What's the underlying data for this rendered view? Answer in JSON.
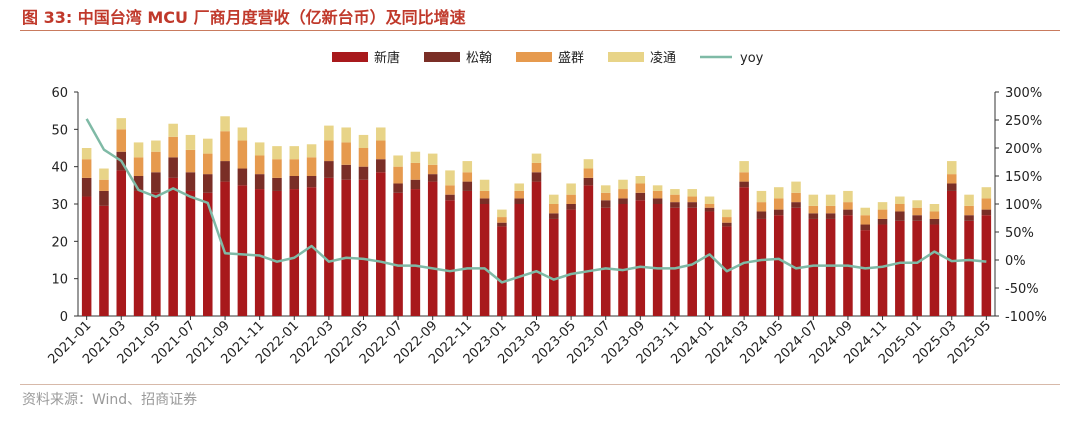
{
  "figure": {
    "title": "图 33:  中国台湾 MCU 厂商月度营收（亿新台币）及同比增速",
    "source": "资料来源：Wind、招商证券"
  },
  "chart_data": {
    "type": "bar",
    "stacked": true,
    "categories": [
      "2021-01",
      "2021-02",
      "2021-03",
      "2021-04",
      "2021-05",
      "2021-06",
      "2021-07",
      "2021-08",
      "2021-09",
      "2021-10",
      "2021-11",
      "2021-12",
      "2022-01",
      "2022-02",
      "2022-03",
      "2022-04",
      "2022-05",
      "2022-06",
      "2022-07",
      "2022-08",
      "2022-09",
      "2022-10",
      "2022-11",
      "2022-12",
      "2023-01",
      "2023-02",
      "2023-03",
      "2023-04",
      "2023-05",
      "2023-06",
      "2023-07",
      "2023-08",
      "2023-09",
      "2023-10",
      "2023-11",
      "2023-12",
      "2024-01",
      "2024-02",
      "2024-03",
      "2024-04",
      "2024-05",
      "2024-06",
      "2024-07",
      "2024-08",
      "2024-09",
      "2024-10",
      "2024-11",
      "2024-12",
      "2025-01",
      "2025-02",
      "2025-03",
      "2025-04",
      "2025-05"
    ],
    "x_tick_labels": [
      "2021-01",
      "2021-03",
      "2021-05",
      "2021-07",
      "2021-09",
      "2021-11",
      "2022-01",
      "2022-03",
      "2022-05",
      "2022-07",
      "2022-09",
      "2022-11",
      "2023-01",
      "2023-03",
      "2023-05",
      "2023-07",
      "2023-09",
      "2023-11",
      "2024-01",
      "2024-03",
      "2024-05",
      "2024-07",
      "2024-09",
      "2024-11",
      "2025-01",
      "2025-03",
      "2025-05"
    ],
    "series": [
      {
        "name": "新唐",
        "color": "#a8191c",
        "axis": "left",
        "values": [
          32,
          29.5,
          39,
          33.5,
          33,
          37,
          33.5,
          33,
          36,
          35,
          34,
          33.5,
          34,
          34.5,
          37,
          36.5,
          36.5,
          38.5,
          33,
          34,
          36,
          31,
          33.5,
          30,
          24,
          30,
          36,
          26,
          28.5,
          35,
          29,
          30,
          31,
          30,
          29,
          29,
          28,
          24,
          34.5,
          26,
          27,
          29,
          26,
          26,
          27,
          23,
          24.5,
          25.5,
          25.5,
          24.5,
          33.5,
          25.5,
          27
        ]
      },
      {
        "name": "松翰",
        "color": "#7a2e26",
        "axis": "left",
        "values": [
          5,
          4,
          5,
          4,
          5.5,
          5.5,
          5,
          5,
          5.5,
          4.5,
          4,
          3.5,
          3.5,
          3,
          4.5,
          4,
          3.5,
          3.5,
          2.5,
          2.5,
          2,
          1.5,
          2.5,
          1.5,
          1,
          1.5,
          2.5,
          1.5,
          1.5,
          2,
          2,
          1.5,
          2,
          1.5,
          1.5,
          1.5,
          1,
          1,
          1.5,
          2,
          1.5,
          1.5,
          1.5,
          1.5,
          1.5,
          1.5,
          1.5,
          2.5,
          1.5,
          1.5,
          2,
          1.5,
          1.5
        ]
      },
      {
        "name": "盛群",
        "color": "#e69a4e",
        "axis": "left",
        "values": [
          5,
          3,
          6,
          5,
          5.5,
          5.5,
          6,
          5.5,
          8,
          7.5,
          5,
          5,
          4.5,
          5,
          5.5,
          6,
          5,
          5,
          4.5,
          4.5,
          2.5,
          2.5,
          2.5,
          2,
          1.5,
          2,
          2.5,
          2.5,
          2.5,
          2.5,
          2,
          2.5,
          2.5,
          2,
          2,
          1.5,
          1,
          1.5,
          2.5,
          2.5,
          3,
          2.5,
          2,
          2,
          2,
          2.5,
          2.5,
          2,
          2,
          2,
          2.5,
          2.5,
          3
        ]
      },
      {
        "name": "凌通",
        "color": "#e8d488",
        "axis": "left",
        "values": [
          3,
          3,
          3,
          4,
          3,
          3.5,
          4,
          4,
          4,
          3.5,
          3.5,
          3.5,
          3.5,
          3.5,
          4,
          4,
          3.5,
          3.5,
          3,
          3,
          3,
          4,
          3,
          3,
          2,
          2,
          2.5,
          2.5,
          3,
          2.5,
          2,
          2.5,
          2,
          1.5,
          1.5,
          2,
          2,
          2,
          3,
          3,
          3,
          3,
          3,
          3,
          3,
          2,
          2,
          2,
          2,
          2,
          3.5,
          3,
          3
        ]
      },
      {
        "name": "yoy",
        "type": "line",
        "color": "#7fbaa6",
        "axis": "right",
        "unit": "%",
        "values": [
          252,
          197,
          177,
          125,
          113,
          128,
          113,
          102,
          12,
          10,
          8,
          -3,
          4,
          25,
          -3,
          4,
          2,
          -3,
          -10,
          -10,
          -15,
          -20,
          -15,
          -15,
          -40,
          -30,
          -20,
          -35,
          -25,
          -20,
          -15,
          -18,
          -12,
          -15,
          -15,
          -8,
          10,
          -20,
          -5,
          0,
          2,
          -15,
          -10,
          -10,
          -10,
          -15,
          -12,
          -5,
          -5,
          15,
          -2,
          0,
          -3
        ]
      }
    ],
    "y_left": {
      "min": 0,
      "max": 60,
      "ticks": [
        0,
        10,
        20,
        30,
        40,
        50,
        60
      ]
    },
    "y_right": {
      "min": -100,
      "max": 300,
      "ticks": [
        "-100%",
        "-50%",
        "0%",
        "50%",
        "100%",
        "150%",
        "200%",
        "250%",
        "300%"
      ]
    },
    "legend_position": "top-center",
    "grid": false
  }
}
